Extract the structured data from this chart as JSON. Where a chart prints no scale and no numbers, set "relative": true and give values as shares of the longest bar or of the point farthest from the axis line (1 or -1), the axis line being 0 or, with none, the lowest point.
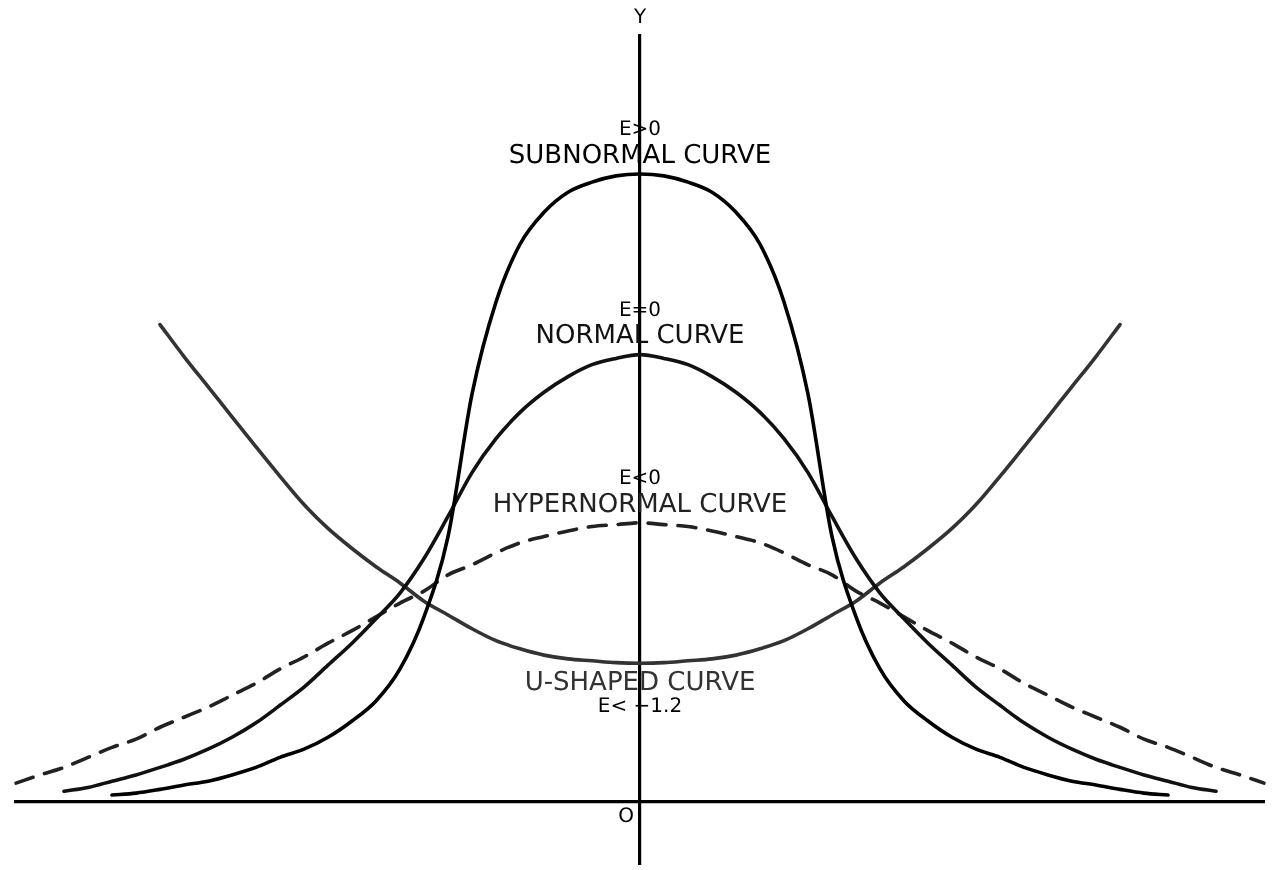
{
  "chart_data": {
    "type": "line",
    "relative": true,
    "categories": [
      null,
      null,
      null,
      null,
      null,
      null,
      null,
      null,
      null,
      null,
      null,
      null,
      null,
      null,
      null,
      null,
      null,
      null,
      null,
      null,
      null,
      null,
      null,
      null,
      null,
      null,
      null,
      null,
      null,
      null,
      null,
      null,
      null,
      null,
      null,
      null,
      null,
      null,
      null,
      null,
      null,
      null,
      null,
      null,
      null,
      null,
      null,
      null,
      null,
      null,
      null,
      null,
      null
    ],
    "series": [
      {
        "name": "SUBNORMAL CURVE",
        "color": "#000000",
        "values": [
          null,
          null,
          null,
          null,
          0.01,
          0.013,
          0.019,
          0.026,
          0.032,
          0.042,
          0.054,
          0.07,
          0.083,
          0.102,
          0.128,
          0.16,
          0.211,
          0.294,
          0.422,
          0.649,
          0.796,
          0.888,
          0.939,
          0.971,
          0.987,
          0.997,
          1,
          0.997,
          0.987,
          0.971,
          0.939,
          0.888,
          0.796,
          0.649,
          0.422,
          0.294,
          0.211,
          0.16,
          0.128,
          0.102,
          0.083,
          0.07,
          0.054,
          0.042,
          0.032,
          0.026,
          0.019,
          0.013,
          0.01,
          null,
          null,
          null,
          null
        ]
      },
      {
        "name": "NORMAL CURVE",
        "color": "#111111",
        "values": [
          null,
          null,
          0.016,
          0.022,
          0.032,
          0.042,
          0.054,
          0.067,
          0.083,
          0.102,
          0.125,
          0.153,
          0.182,
          0.217,
          0.252,
          0.291,
          0.332,
          0.387,
          0.454,
          0.524,
          0.578,
          0.62,
          0.652,
          0.677,
          0.696,
          0.706,
          0.712,
          0.706,
          0.696,
          0.677,
          0.652,
          0.62,
          0.578,
          0.524,
          0.454,
          0.387,
          0.332,
          0.291,
          0.252,
          0.217,
          0.182,
          0.153,
          0.125,
          0.102,
          0.083,
          0.067,
          0.054,
          0.042,
          0.032,
          0.022,
          0.016,
          null,
          null
        ]
      },
      {
        "name": "HYPERNORMAL CURVE",
        "color": "#222222",
        "line_style": "dashed",
        "values": [
          0.029,
          0.042,
          0.054,
          0.07,
          0.086,
          0.099,
          0.118,
          0.134,
          0.15,
          0.169,
          0.188,
          0.211,
          0.23,
          0.252,
          0.272,
          0.294,
          0.316,
          0.335,
          0.361,
          0.377,
          0.396,
          0.412,
          0.422,
          0.431,
          0.438,
          0.441,
          0.444,
          0.441,
          0.438,
          0.431,
          0.422,
          0.412,
          0.396,
          0.377,
          0.361,
          0.335,
          0.316,
          0.294,
          0.272,
          0.252,
          0.23,
          0.211,
          0.188,
          0.169,
          0.15,
          0.134,
          0.118,
          0.099,
          0.086,
          0.07,
          0.054,
          0.042,
          0.029
        ]
      },
      {
        "name": "U-SHAPED CURVE",
        "color": "#333333",
        "values": [
          null,
          null,
          null,
          null,
          null,
          null,
          0.76,
          0.709,
          0.661,
          0.613,
          0.565,
          0.518,
          0.473,
          0.435,
          0.403,
          0.374,
          0.348,
          0.319,
          0.297,
          0.275,
          0.256,
          0.243,
          0.233,
          0.227,
          0.224,
          0.221,
          0.22,
          0.221,
          0.224,
          0.227,
          0.233,
          0.243,
          0.256,
          0.275,
          0.297,
          0.319,
          0.348,
          0.374,
          0.403,
          0.435,
          0.473,
          0.518,
          0.565,
          0.613,
          0.661,
          0.709,
          0.76,
          null,
          null,
          null,
          null,
          null,
          null
        ]
      }
    ],
    "annotations": [
      "Y",
      "E>0",
      "E=0",
      "E<0",
      "E< −1.2",
      "O"
    ]
  }
}
